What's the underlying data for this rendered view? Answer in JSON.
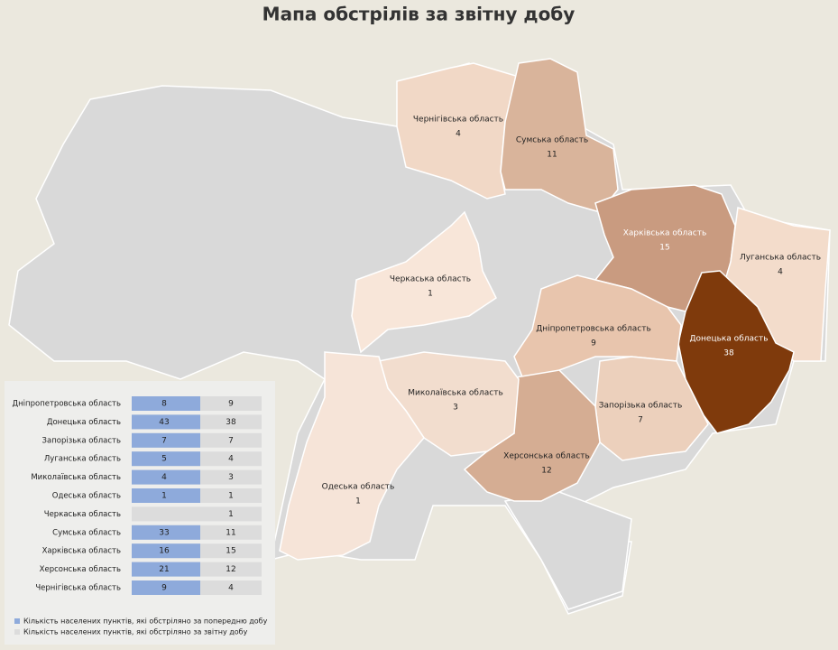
{
  "title": "Мапа обстрілів за звітну добу",
  "regions": [
    {
      "name": "Чернігівська область",
      "value": 4,
      "color": "#f1d8c6"
    },
    {
      "name": "Сумська область",
      "value": 11,
      "color": "#d9b49b"
    },
    {
      "name": "Харківська область",
      "value": 15,
      "color": "#c99b80"
    },
    {
      "name": "Луганська область",
      "value": 4,
      "color": "#f3dccb"
    },
    {
      "name": "Донецька область",
      "value": 38,
      "color": "#7f3a0c"
    },
    {
      "name": "Дніпропетровська область",
      "value": 9,
      "color": "#e8c5ad"
    },
    {
      "name": "Запорізька область",
      "value": 7,
      "color": "#ecd0bc"
    },
    {
      "name": "Херсонська область",
      "value": 12,
      "color": "#d5ad93"
    },
    {
      "name": "Миколаївська область",
      "value": 3,
      "color": "#f2ddce"
    },
    {
      "name": "Одеська область",
      "value": 1,
      "color": "#f6e4d8"
    },
    {
      "name": "Черкаська область",
      "value": 1,
      "color": "#f8e6d9"
    }
  ],
  "table": {
    "rows": [
      {
        "region": "Дніпропетровська область",
        "previous": 8,
        "current": 9
      },
      {
        "region": "Донецька область",
        "previous": 43,
        "current": 38
      },
      {
        "region": "Запорізька область",
        "previous": 7,
        "current": 7
      },
      {
        "region": "Луганська область",
        "previous": 5,
        "current": 4
      },
      {
        "region": "Миколаївська область",
        "previous": 4,
        "current": 3
      },
      {
        "region": "Одеська область",
        "previous": 1,
        "current": 1
      },
      {
        "region": "Черкаська область",
        "previous": null,
        "current": 1
      },
      {
        "region": "Сумська область",
        "previous": 33,
        "current": 11
      },
      {
        "region": "Харківська область",
        "previous": 16,
        "current": 15
      },
      {
        "region": "Херсонська область",
        "previous": 21,
        "current": 12
      },
      {
        "region": "Чернігівська область",
        "previous": 9,
        "current": 4
      }
    ]
  },
  "legend": [
    {
      "label": "Кількість населених пунктів, які обстріляно за попередню добу",
      "color": "#8eaadb"
    },
    {
      "label": "Кількість населених пунктів, які обстріляно за звітну добу",
      "color": "#dcdcdc"
    }
  ]
}
